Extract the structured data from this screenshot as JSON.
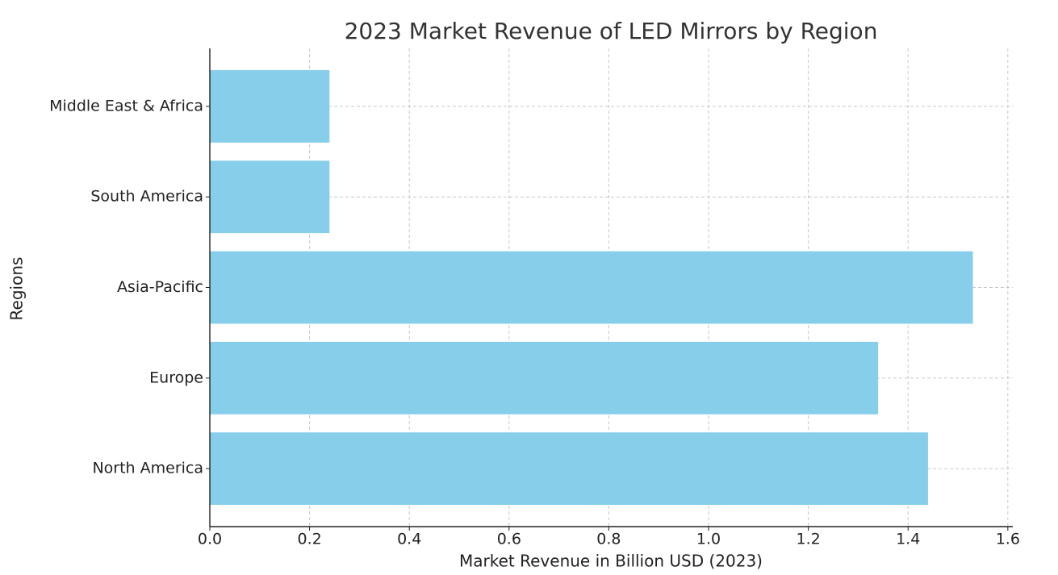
{
  "chart_data": {
    "type": "barh",
    "title": "2023 Market Revenue of LED Mirrors by Region",
    "x_label": "Market Revenue in Billion USD (2023)",
    "y_label": "Regions",
    "categories": [
      "North America",
      "Europe",
      "Asia-Pacific",
      "South America",
      "Middle East & Africa"
    ],
    "values": [
      1.44,
      1.34,
      1.53,
      0.24,
      0.24
    ],
    "color": "#87ceeb",
    "xlim": [
      0,
      1.61
    ],
    "xticks": [
      {
        "value": 0,
        "label": "0.0"
      },
      0.2,
      0.4,
      0.6,
      0.8,
      {
        "value": 1,
        "label": "1.0"
      },
      1.2,
      1.4,
      1.6
    ],
    "grid": true
  }
}
